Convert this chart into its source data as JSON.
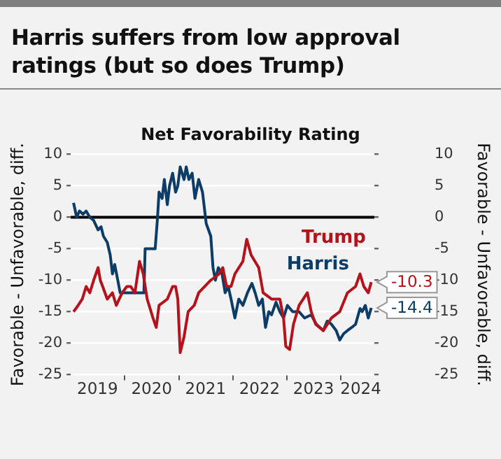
{
  "chart_data": {
    "type": "line",
    "title": "Harris suffers from low approval ratings (but so does Trump)",
    "subtitle": "Net Favorability Rating",
    "ylabel": "Favorable - Unfavorable, diff.",
    "y2label": "Favorable - Unfavorable, diff.",
    "xlim": [
      "2019-01-01",
      "2024-08-15"
    ],
    "xticks": [
      {
        "value": "2019-07-01",
        "label": "2019"
      },
      {
        "value": "2020-01-01",
        "label": null
      },
      {
        "value": "2020-07-01",
        "label": "2020"
      },
      {
        "value": "2021-01-01",
        "label": null
      },
      {
        "value": "2021-07-01",
        "label": "2021"
      },
      {
        "value": "2022-01-01",
        "label": null
      },
      {
        "value": "2022-07-01",
        "label": "2022"
      },
      {
        "value": "2023-01-01",
        "label": null
      },
      {
        "value": "2023-07-01",
        "label": "2023"
      },
      {
        "value": "2024-01-01",
        "label": null
      },
      {
        "value": "2024-05-15",
        "label": "2024"
      }
    ],
    "ylim": [
      -25,
      10
    ],
    "yticks": [
      -25,
      -20,
      -15,
      -10,
      -5,
      0,
      5,
      10
    ],
    "y2lim": [
      -25,
      10
    ],
    "y2ticks": [
      -25,
      -20,
      -15,
      -10,
      -5,
      0,
      5,
      10
    ],
    "grid": "y",
    "ref_lines": [
      {
        "axis": "y",
        "value": 0,
        "color": "#000000"
      }
    ],
    "series": [
      {
        "name": "Trump",
        "color": "#b5121b",
        "x": [
          "2019-01-20",
          "2019-02-20",
          "2019-03-20",
          "2019-04-15",
          "2019-05-10",
          "2019-06-05",
          "2019-07-05",
          "2019-07-20",
          "2019-08-05",
          "2019-09-05",
          "2019-10-10",
          "2019-11-05",
          "2019-12-15",
          "2020-01-15",
          "2020-02-10",
          "2020-03-10",
          "2020-04-10",
          "2020-05-05",
          "2020-06-01",
          "2020-07-10",
          "2020-08-01",
          "2020-08-20",
          "2020-10-15",
          "2020-11-20",
          "2020-12-10",
          "2020-12-25",
          "2021-01-10",
          "2021-02-05",
          "2021-03-05",
          "2021-04-15",
          "2021-05-15",
          "2021-06-25",
          "2021-08-05",
          "2021-10-01",
          "2021-10-25",
          "2021-11-20",
          "2021-12-20",
          "2022-01-15",
          "2022-03-10",
          "2022-04-05",
          "2022-05-05",
          "2022-06-25",
          "2022-07-25",
          "2022-09-20",
          "2022-11-15",
          "2022-12-10",
          "2022-12-25",
          "2023-01-20",
          "2023-02-15",
          "2023-03-25",
          "2023-05-20",
          "2023-06-15",
          "2023-07-15",
          "2023-09-05",
          "2023-10-30",
          "2023-12-25",
          "2024-02-15",
          "2024-04-10",
          "2024-05-10",
          "2024-06-05",
          "2024-07-05",
          "2024-07-25"
        ],
        "values": [
          -15,
          -14,
          -13,
          -11,
          -12,
          -10,
          -8,
          -10,
          -11,
          -13,
          -12,
          -14,
          -12,
          -11,
          -11,
          -12,
          -7,
          -9,
          -13,
          -16,
          -17.5,
          -14,
          -13,
          -11,
          -11,
          -13,
          -21.5,
          -19,
          -15,
          -14,
          -12,
          -11,
          -10,
          -9,
          -8,
          -11,
          -11,
          -9,
          -7,
          -3.5,
          -6,
          -8,
          -12,
          -13,
          -13,
          -16,
          -20.5,
          -21,
          -17,
          -14,
          -12,
          -15,
          -17,
          -18,
          -16,
          -15,
          -12,
          -11,
          -9,
          -11,
          -12,
          -10.3
        ],
        "value_labels": [
          null,
          null,
          null,
          null,
          null,
          null,
          null,
          null,
          null,
          null,
          null,
          null,
          null,
          null,
          null,
          null,
          null,
          null,
          null,
          null,
          null,
          null,
          null,
          null,
          null,
          null,
          null,
          null,
          null,
          null,
          null,
          null,
          null,
          null,
          null,
          null,
          null,
          null,
          null,
          null,
          null,
          null,
          null,
          null,
          null,
          null,
          null,
          null,
          null,
          null,
          null,
          null,
          null,
          null,
          null,
          null,
          null,
          null,
          null,
          null,
          null,
          "-10.3"
        ]
      },
      {
        "name": "Harris",
        "color": "#0d3d66",
        "x": [
          "2019-01-20",
          "2019-02-10",
          "2019-03-01",
          "2019-03-25",
          "2019-04-15",
          "2019-05-10",
          "2019-06-05",
          "2019-07-05",
          "2019-07-25",
          "2019-08-10",
          "2019-09-05",
          "2019-09-25",
          "2019-10-10",
          "2019-10-25",
          "2019-11-15",
          "2019-12-01",
          "2020-01-15",
          "2020-03-01",
          "2020-05-10",
          "2020-05-18",
          "2020-07-25",
          "2020-08-10",
          "2020-08-20",
          "2020-09-10",
          "2020-09-25",
          "2020-10-15",
          "2020-10-30",
          "2020-11-20",
          "2020-12-10",
          "2020-12-25",
          "2021-01-10",
          "2021-02-05",
          "2021-02-20",
          "2021-03-10",
          "2021-04-01",
          "2021-04-20",
          "2021-05-15",
          "2021-06-10",
          "2021-06-25",
          "2021-07-05",
          "2021-08-05",
          "2021-08-20",
          "2021-09-05",
          "2021-09-25",
          "2021-10-20",
          "2021-11-10",
          "2021-12-01",
          "2021-12-20",
          "2022-01-15",
          "2022-02-10",
          "2022-03-10",
          "2022-04-10",
          "2022-05-10",
          "2022-06-01",
          "2022-06-25",
          "2022-07-20",
          "2022-08-10",
          "2022-09-01",
          "2022-09-20",
          "2022-10-20",
          "2022-11-15",
          "2022-12-10",
          "2023-01-05",
          "2023-02-10",
          "2023-03-25",
          "2023-05-01",
          "2023-06-15",
          "2023-07-20",
          "2023-09-05",
          "2023-10-01",
          "2023-10-30",
          "2023-12-01",
          "2023-12-25",
          "2024-01-20",
          "2024-02-15",
          "2024-03-15",
          "2024-04-10",
          "2024-05-10",
          "2024-05-25",
          "2024-06-15",
          "2024-07-05",
          "2024-07-25"
        ],
        "values": [
          2.3,
          0,
          1,
          0.5,
          1,
          0,
          -0.5,
          -2,
          -1.5,
          -3,
          -4,
          -6,
          -9,
          -7.5,
          -10,
          -12,
          -12,
          -12,
          -12,
          -5,
          -5,
          0,
          4,
          3,
          6,
          2,
          5,
          7,
          4,
          5,
          8,
          6,
          8,
          6,
          7,
          3,
          6,
          4,
          1,
          -1,
          -3,
          -8,
          -10,
          -8,
          -9,
          -12,
          -11,
          -13,
          -16,
          -13,
          -14,
          -12,
          -10.5,
          -12,
          -14,
          -13,
          -17.5,
          -15,
          -15.5,
          -13.5,
          -15,
          -16,
          -14,
          -15,
          -15,
          -16,
          -15.5,
          -17,
          -18,
          -16.5,
          -17,
          -18,
          -19.5,
          -18.5,
          -18,
          -17.5,
          -17,
          -14.5,
          -15,
          -14,
          -16,
          -14.4
        ],
        "value_labels": [
          null,
          null,
          null,
          null,
          null,
          null,
          null,
          null,
          null,
          null,
          null,
          null,
          null,
          null,
          null,
          null,
          null,
          null,
          null,
          null,
          null,
          null,
          null,
          null,
          null,
          null,
          null,
          null,
          null,
          null,
          null,
          null,
          null,
          null,
          null,
          null,
          null,
          null,
          null,
          null,
          null,
          null,
          null,
          null,
          null,
          null,
          null,
          null,
          null,
          null,
          null,
          null,
          null,
          null,
          null,
          null,
          null,
          null,
          null,
          null,
          null,
          null,
          null,
          null,
          null,
          null,
          null,
          null,
          null,
          null,
          null,
          null,
          null,
          null,
          null,
          null,
          null,
          null,
          null,
          null,
          null,
          "-14.4"
        ]
      }
    ]
  }
}
